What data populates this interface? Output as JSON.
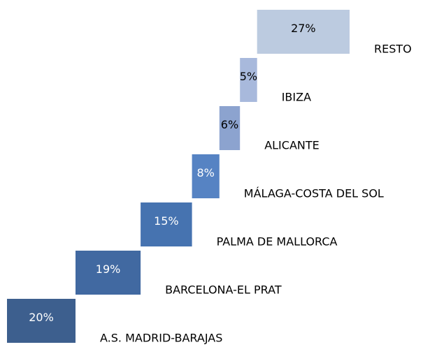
{
  "chart_data": {
    "type": "waterfall",
    "categories": [
      "A.S. MADRID-BARAJAS",
      "BARCELONA-EL PRAT",
      "PALMA DE MALLORCA",
      "MÁLAGA-COSTA DEL SOL",
      "ALICANTE",
      "IBIZA",
      "RESTO"
    ],
    "values": [
      20,
      19,
      15,
      8,
      6,
      5,
      27
    ],
    "value_labels": [
      "20%",
      "19%",
      "15%",
      "8%",
      "6%",
      "5%",
      "27%"
    ],
    "colors": [
      "#3d5f8e",
      "#4169a1",
      "#4673b0",
      "#5683c3",
      "#8ca3cf",
      "#a8b9dc",
      "#bccbe0"
    ],
    "xlim": [
      0,
      100
    ]
  }
}
